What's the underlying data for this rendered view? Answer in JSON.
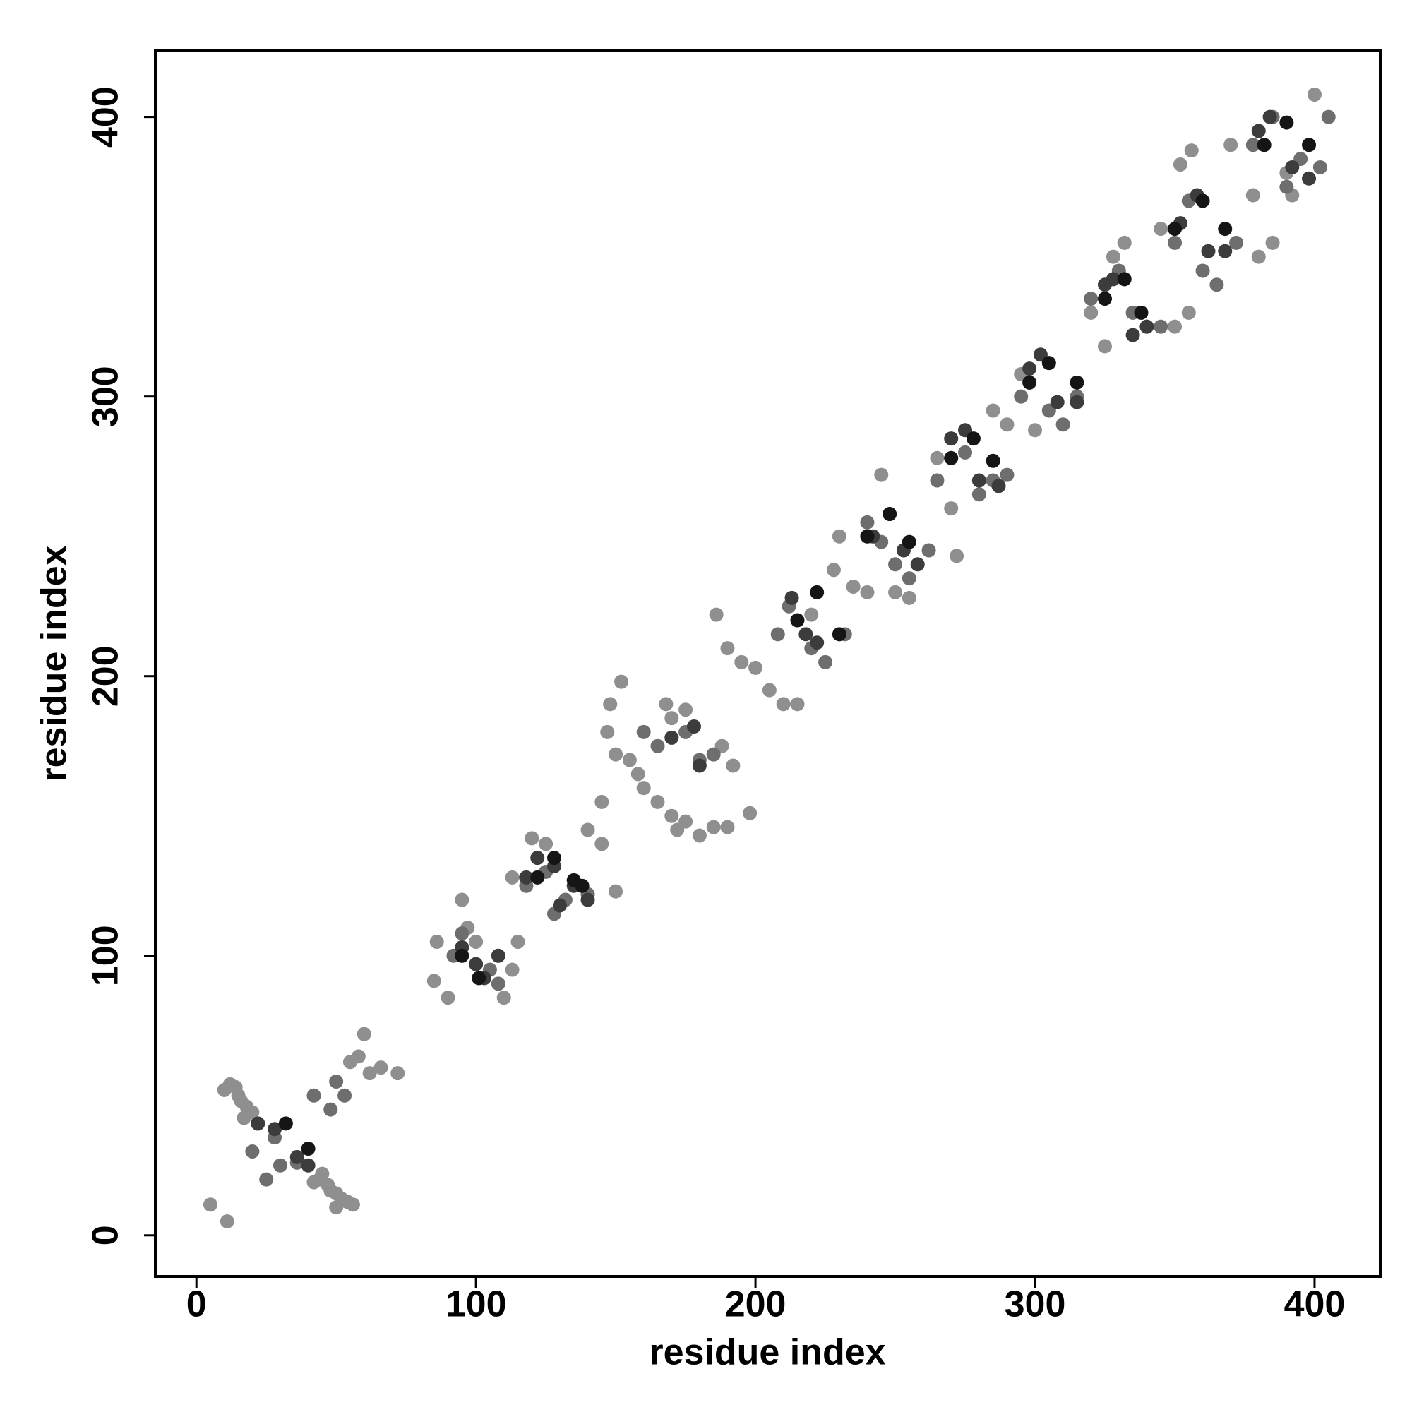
{
  "chart_data": {
    "type": "scatter",
    "xlabel": "residue index",
    "ylabel": "residue index",
    "xlim": [
      -14.7,
      423.5
    ],
    "ylim": [
      -14.7,
      423.9
    ],
    "xticks": [
      0,
      100,
      200,
      300,
      400
    ],
    "yticks": [
      0,
      100,
      200,
      300,
      400
    ],
    "grid": false,
    "series": [
      {
        "color": "#8f8f8f",
        "x": [
          5,
          11,
          10,
          12,
          14,
          15,
          16,
          18,
          20,
          17,
          22,
          45,
          47,
          48,
          50,
          52,
          54,
          56,
          50,
          44,
          42,
          60,
          58,
          62,
          66,
          72,
          55,
          85,
          86,
          90,
          95,
          97,
          100,
          110,
          113,
          115,
          113,
          120,
          125,
          145,
          150,
          140,
          145,
          147,
          148,
          150,
          152,
          155,
          158,
          160,
          165,
          170,
          172,
          175,
          180,
          185,
          190,
          198,
          168,
          170,
          175,
          188,
          192,
          186,
          190,
          195,
          200,
          205,
          210,
          215,
          220,
          228,
          230,
          235,
          240,
          245,
          250,
          255,
          265,
          270,
          272,
          285,
          290,
          295,
          300,
          320,
          325,
          328,
          332,
          345,
          350,
          355,
          352,
          356,
          370,
          378,
          380,
          385,
          390,
          392,
          400
        ],
        "y": [
          11,
          5,
          52,
          54,
          53,
          50,
          48,
          46,
          44,
          42,
          40,
          22,
          18,
          16,
          15,
          13,
          12,
          11,
          10,
          20,
          19,
          72,
          64,
          58,
          60,
          58,
          62,
          91,
          105,
          85,
          120,
          110,
          105,
          85,
          95,
          105,
          128,
          142,
          140,
          140,
          123,
          145,
          155,
          180,
          190,
          172,
          198,
          170,
          165,
          160,
          155,
          150,
          145,
          148,
          143,
          146,
          146,
          151,
          190,
          185,
          188,
          175,
          168,
          222,
          210,
          205,
          203,
          195,
          190,
          190,
          222,
          238,
          250,
          232,
          230,
          272,
          230,
          228,
          278,
          260,
          243,
          295,
          290,
          308,
          288,
          330,
          318,
          350,
          355,
          360,
          325,
          330,
          383,
          388,
          390,
          372,
          350,
          355,
          380,
          372,
          408
        ]
      },
      {
        "color": "#6e6e6e",
        "x": [
          20,
          28,
          30,
          25,
          36,
          42,
          50,
          48,
          53,
          92,
          95,
          105,
          108,
          118,
          125,
          128,
          132,
          140,
          160,
          165,
          175,
          180,
          185,
          208,
          212,
          220,
          225,
          232,
          240,
          245,
          250,
          255,
          262,
          265,
          275,
          280,
          285,
          290,
          295,
          305,
          310,
          315,
          320,
          330,
          335,
          340,
          345,
          350,
          355,
          360,
          365,
          372,
          378,
          385,
          390,
          395,
          402,
          405
        ],
        "y": [
          30,
          35,
          25,
          20,
          26,
          50,
          55,
          45,
          50,
          100,
          108,
          95,
          90,
          125,
          130,
          115,
          120,
          122,
          180,
          175,
          180,
          170,
          172,
          215,
          225,
          210,
          205,
          215,
          255,
          248,
          240,
          235,
          245,
          270,
          280,
          265,
          270,
          272,
          300,
          295,
          290,
          300,
          335,
          345,
          330,
          325,
          325,
          355,
          370,
          345,
          340,
          355,
          390,
          400,
          375,
          385,
          382,
          400
        ]
      },
      {
        "color": "#3c3c3c",
        "x": [
          22,
          28,
          36,
          40,
          95,
          100,
          103,
          108,
          118,
          122,
          128,
          130,
          135,
          140,
          170,
          178,
          180,
          213,
          218,
          222,
          242,
          248,
          253,
          258,
          270,
          275,
          280,
          287,
          298,
          302,
          308,
          315,
          325,
          328,
          335,
          340,
          352,
          358,
          362,
          368,
          380,
          384,
          392,
          398
        ],
        "y": [
          40,
          38,
          28,
          25,
          103,
          97,
          92,
          100,
          128,
          135,
          132,
          118,
          125,
          120,
          178,
          182,
          168,
          228,
          215,
          212,
          250,
          258,
          245,
          240,
          285,
          288,
          270,
          268,
          310,
          315,
          298,
          298,
          340,
          342,
          322,
          325,
          362,
          372,
          352,
          352,
          395,
          400,
          382,
          378
        ]
      },
      {
        "color": "#151515",
        "x": [
          32,
          40,
          95,
          101,
          122,
          128,
          135,
          138,
          215,
          222,
          230,
          240,
          248,
          255,
          270,
          278,
          285,
          298,
          305,
          315,
          325,
          332,
          338,
          350,
          360,
          368,
          382,
          390,
          398
        ],
        "y": [
          40,
          31,
          100,
          92,
          128,
          135,
          127,
          125,
          220,
          230,
          215,
          250,
          258,
          248,
          278,
          285,
          277,
          305,
          312,
          305,
          335,
          342,
          330,
          360,
          370,
          360,
          390,
          398,
          390
        ]
      }
    ]
  }
}
